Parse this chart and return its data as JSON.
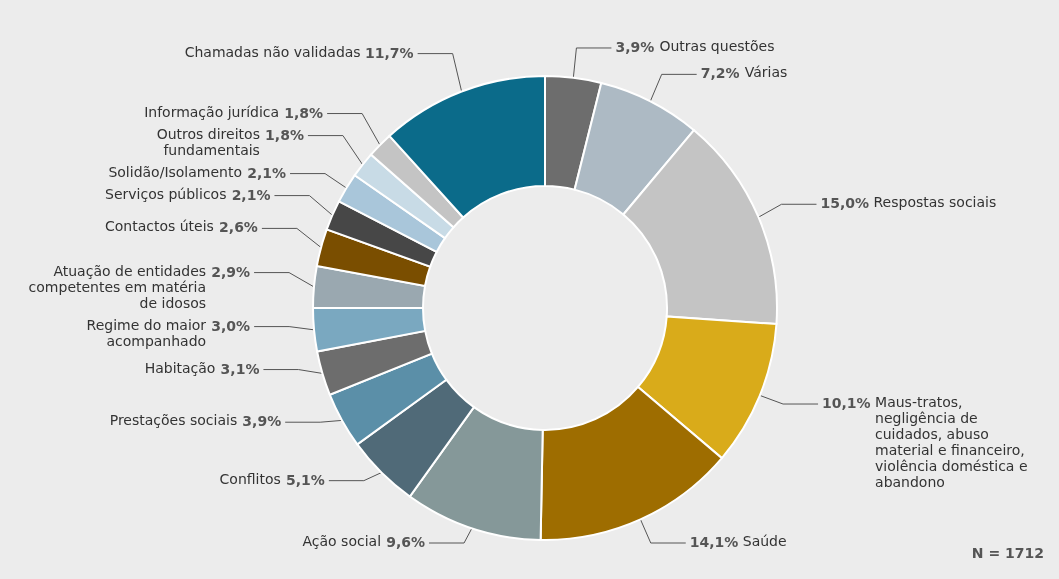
{
  "chart_data": {
    "type": "donut",
    "categories": [
      "Outras questões",
      "Várias",
      "Respostas sociais",
      "Maus-tratos, negligência de cuidados, abuso material e financeiro, violência doméstica e abandono",
      "Saúde",
      "Ação social",
      "Conflitos",
      "Prestações sociais",
      "Habitação",
      "Regime do maior acompanhado",
      "Atuação de entidades competentes em matéria de idosos",
      "Contactos úteis",
      "Serviços públicos",
      "Solidão/Isolamento",
      "Outros direitos fundamentais",
      "Informação jurídica",
      "Chamadas não validadas"
    ],
    "values": [
      3.9,
      7.2,
      15.0,
      10.1,
      14.1,
      9.6,
      5.1,
      3.9,
      3.1,
      3.0,
      2.9,
      2.6,
      2.1,
      2.1,
      1.8,
      1.8,
      11.7
    ],
    "value_labels": [
      "3,9%",
      "7,2%",
      "15,0%",
      "10,1%",
      "14,1%",
      "9,6%",
      "5,1%",
      "3,9%",
      "3,1%",
      "3,0%",
      "2,9%",
      "2,6%",
      "2,1%",
      "2,1%",
      "1,8%",
      "1,8%",
      "11,7%"
    ],
    "colors": [
      "#6d6d6d",
      "#adbac4",
      "#c4c4c4",
      "#d9ab1a",
      "#9e6d00",
      "#859899",
      "#506a78",
      "#5b8fa8",
      "#6d6d6d",
      "#7aa8c0",
      "#9aa8b0",
      "#7a4e00",
      "#474747",
      "#a9c6da",
      "#c8dbe6",
      "#c4c4c4",
      "#0b6b8a"
    ],
    "annotations": [
      "N = 1712"
    ]
  }
}
